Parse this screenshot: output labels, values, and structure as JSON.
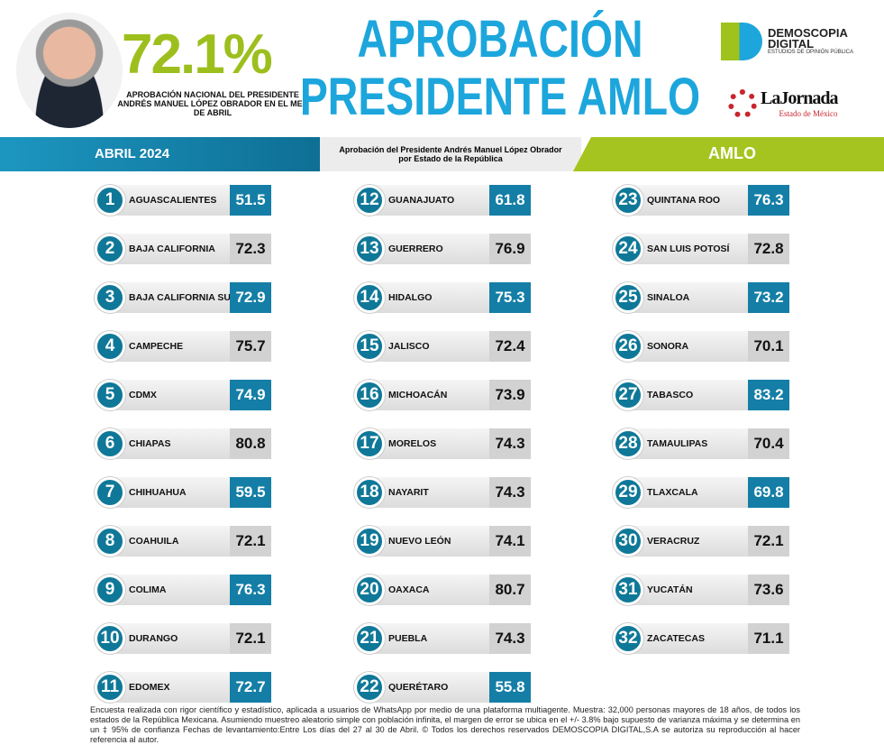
{
  "header": {
    "national_pct": "72.1%",
    "national_caption": "APROBACIÓN NACIONAL DEL PRESIDENTE ANDRÉS MANUEL LÓPEZ OBRADOR EN EL MES DE ABRIL",
    "title_line1": "APROBACIÓN",
    "title_line2": "PRESIDENTE AMLO"
  },
  "logos": {
    "demoscopia_line1": "DEMOSCOPIA",
    "demoscopia_line2": "DIGITAL",
    "demoscopia_tagline": "ESTUDIOS DE OPINIÓN PÚBLICA",
    "jornada": "LaJornada",
    "jornada_sub": "Estado de México"
  },
  "band": {
    "left": "ABRIL 2024",
    "middle_line1": "Aprobación del Presidente Andrés Manuel López Obrador",
    "middle_line2": "por Estado de la República",
    "right": "AMLO"
  },
  "colors": {
    "blue": "#147ea6",
    "gray": "#d2d2d2",
    "green": "#9dbf1e",
    "title": "#1da6dc"
  },
  "states": [
    {
      "n": "1",
      "name": "AGUASCALIENTES",
      "value": "51.5",
      "hl": true
    },
    {
      "n": "2",
      "name": "BAJA CALIFORNIA",
      "value": "72.3",
      "hl": false
    },
    {
      "n": "3",
      "name": "BAJA CALIFORNIA SUR",
      "value": "72.9",
      "hl": true
    },
    {
      "n": "4",
      "name": "CAMPECHE",
      "value": "75.7",
      "hl": false
    },
    {
      "n": "5",
      "name": "CDMX",
      "value": "74.9",
      "hl": true
    },
    {
      "n": "6",
      "name": "CHIAPAS",
      "value": "80.8",
      "hl": false
    },
    {
      "n": "7",
      "name": "CHIHUAHUA",
      "value": "59.5",
      "hl": true
    },
    {
      "n": "8",
      "name": "COAHUILA",
      "value": "72.1",
      "hl": false
    },
    {
      "n": "9",
      "name": "COLIMA",
      "value": "76.3",
      "hl": true
    },
    {
      "n": "10",
      "name": "DURANGO",
      "value": "72.1",
      "hl": false
    },
    {
      "n": "11",
      "name": "EDOMEX",
      "value": "72.7",
      "hl": true
    },
    {
      "n": "12",
      "name": "GUANAJUATO",
      "value": "61.8",
      "hl": true
    },
    {
      "n": "13",
      "name": "GUERRERO",
      "value": "76.9",
      "hl": false
    },
    {
      "n": "14",
      "name": "HIDALGO",
      "value": "75.3",
      "hl": true
    },
    {
      "n": "15",
      "name": "JALISCO",
      "value": "72.4",
      "hl": false
    },
    {
      "n": "16",
      "name": "MICHOACÁN",
      "value": "73.9",
      "hl": false
    },
    {
      "n": "17",
      "name": "MORELOS",
      "value": "74.3",
      "hl": false
    },
    {
      "n": "18",
      "name": "NAYARIT",
      "value": "74.3",
      "hl": false
    },
    {
      "n": "19",
      "name": "NUEVO LEÓN",
      "value": "74.1",
      "hl": false
    },
    {
      "n": "20",
      "name": "OAXACA",
      "value": "80.7",
      "hl": false
    },
    {
      "n": "21",
      "name": "PUEBLA",
      "value": "74.3",
      "hl": false
    },
    {
      "n": "22",
      "name": "QUERÉTARO",
      "value": "55.8",
      "hl": true
    },
    {
      "n": "23",
      "name": "QUINTANA ROO",
      "value": "76.3",
      "hl": true
    },
    {
      "n": "24",
      "name": "SAN LUIS POTOSÍ",
      "value": "72.8",
      "hl": false
    },
    {
      "n": "25",
      "name": "SINALOA",
      "value": "73.2",
      "hl": true
    },
    {
      "n": "26",
      "name": "SONORA",
      "value": "70.1",
      "hl": false
    },
    {
      "n": "27",
      "name": "TABASCO",
      "value": "83.2",
      "hl": true
    },
    {
      "n": "28",
      "name": "TAMAULIPAS",
      "value": "70.4",
      "hl": false
    },
    {
      "n": "29",
      "name": "TLAXCALA",
      "value": "69.8",
      "hl": true
    },
    {
      "n": "30",
      "name": "VERACRUZ",
      "value": "72.1",
      "hl": false
    },
    {
      "n": "31",
      "name": "YUCATÁN",
      "value": "73.6",
      "hl": false
    },
    {
      "n": "32",
      "name": "ZACATECAS",
      "value": "71.1",
      "hl": false
    }
  ],
  "footer": "Encuesta realizada con rigor científico y estadístico, aplicada a usuarios de WhatsApp por medio de una plataforma multiagente. Muestra: 32,000 personas mayores de 18 años, de todos los estados de la República Mexicana. Asumiendo muestreo aleatorio simple con población infinita, el margen de error se ubica en el +/- 3.8% bajo supuesto de varianza máxima y se determina en un ‡ 95% de confianza Fechas de levantamiento:Entre Los días del 27 al 30 de Abril. © Todos los derechos reservados DEMOSCOPIA DIGITAL,S.A se autoriza su reproducción al hacer referencia al autor."
}
